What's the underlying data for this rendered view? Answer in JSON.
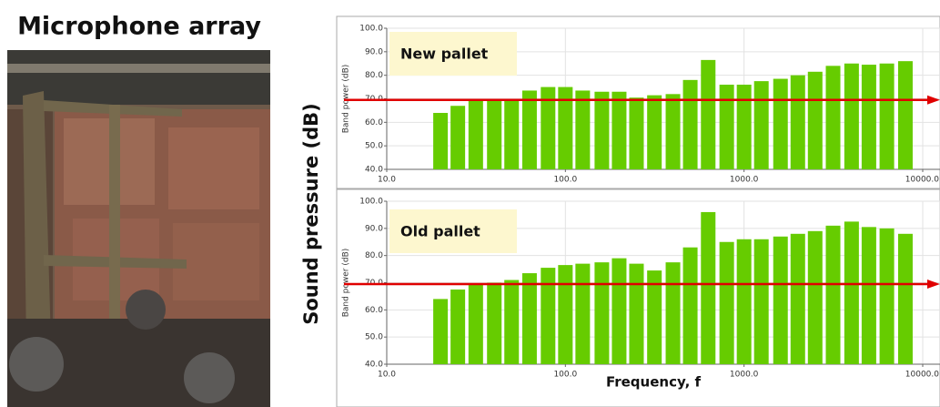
{
  "photo_title": "Microphone array",
  "y_label": "Sound pressure (dB)",
  "x_label": "Frequency, f",
  "chart_data": [
    {
      "type": "bar",
      "annotation": "New pallet",
      "ylabel": "Band power (dB)",
      "color": "#66cc00",
      "x": [
        20,
        25,
        31.5,
        40,
        50,
        63,
        80,
        100,
        125,
        160,
        200,
        250,
        315,
        400,
        500,
        630,
        800,
        1000,
        1250,
        1600,
        2000,
        2500,
        3150,
        4000,
        5000,
        6300,
        8000
      ],
      "values": [
        64,
        67,
        69.5,
        70,
        70,
        73.5,
        75,
        75,
        73.5,
        73,
        73,
        70.5,
        71.5,
        72,
        78,
        86.5,
        76,
        76,
        77.5,
        78.5,
        80,
        81.5,
        84,
        85,
        84.5,
        85,
        86
      ],
      "xscale": "log",
      "xlim": [
        10,
        10000
      ],
      "ylim": [
        40,
        100
      ],
      "xticks": [
        {
          "value": 10,
          "label": "10.0"
        },
        {
          "value": 100,
          "label": "100.0"
        },
        {
          "value": 1000,
          "label": "1000.0"
        },
        {
          "value": 10000,
          "label": "10000.0"
        }
      ],
      "yticks": [
        {
          "value": 40,
          "label": "40.0"
        },
        {
          "value": 50,
          "label": "50.0"
        },
        {
          "value": 60,
          "label": "60.0"
        },
        {
          "value": 70,
          "label": "70.0"
        },
        {
          "value": 80,
          "label": "80.0"
        },
        {
          "value": 90,
          "label": "90.0"
        },
        {
          "value": 100,
          "label": "100.0"
        }
      ],
      "grid": true,
      "reference_line": {
        "value": 69.5,
        "color": "#e00000"
      }
    },
    {
      "type": "bar",
      "annotation": "Old pallet",
      "ylabel": "Band power (dB)",
      "color": "#66cc00",
      "x": [
        20,
        25,
        31.5,
        40,
        50,
        63,
        80,
        100,
        125,
        160,
        200,
        250,
        315,
        400,
        500,
        630,
        800,
        1000,
        1250,
        1600,
        2000,
        2500,
        3150,
        4000,
        5000,
        6300,
        8000
      ],
      "values": [
        64,
        67.5,
        69.5,
        70,
        71,
        73.5,
        75.5,
        76.5,
        77,
        77.5,
        79,
        77,
        74.5,
        77.5,
        83,
        96,
        85,
        86,
        86,
        87,
        88,
        89,
        91,
        92.5,
        90.5,
        90,
        88
      ],
      "xscale": "log",
      "xlim": [
        10,
        10000
      ],
      "ylim": [
        40,
        100
      ],
      "xticks": [
        {
          "value": 10,
          "label": "10.0"
        },
        {
          "value": 100,
          "label": "100.0"
        },
        {
          "value": 1000,
          "label": "1000.0"
        },
        {
          "value": 10000,
          "label": "10000.0"
        }
      ],
      "yticks": [
        {
          "value": 40,
          "label": "40.0"
        },
        {
          "value": 50,
          "label": "50.0"
        },
        {
          "value": 60,
          "label": "60.0"
        },
        {
          "value": 70,
          "label": "70.0"
        },
        {
          "value": 80,
          "label": "80.0"
        },
        {
          "value": 90,
          "label": "90.0"
        },
        {
          "value": 100,
          "label": "100.0"
        }
      ],
      "grid": true,
      "reference_line": {
        "value": 69.5,
        "color": "#e00000"
      }
    }
  ]
}
